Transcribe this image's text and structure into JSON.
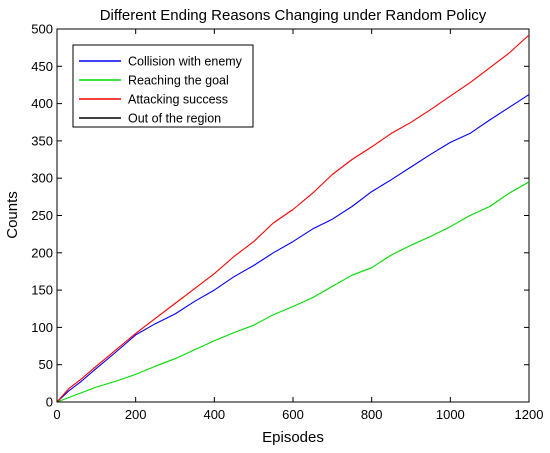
{
  "chart_data": {
    "type": "line",
    "title": "Different Ending Reasons Changing under Random Policy",
    "xlabel": "Episodes",
    "ylabel": "Counts",
    "xlim": [
      0,
      1200
    ],
    "ylim": [
      0,
      500
    ],
    "xticks": [
      0,
      200,
      400,
      600,
      800,
      1000,
      1200
    ],
    "yticks": [
      0,
      50,
      100,
      150,
      200,
      250,
      300,
      350,
      400,
      450,
      500
    ],
    "grid": false,
    "legend_position": "top-left",
    "series": [
      {
        "name": "Collision with enemy",
        "color": "#0000ff",
        "x": [
          0,
          30,
          60,
          100,
          150,
          200,
          250,
          300,
          350,
          400,
          450,
          500,
          550,
          600,
          650,
          700,
          750,
          800,
          850,
          900,
          950,
          1000,
          1050,
          1100,
          1150,
          1200
        ],
        "y": [
          0,
          15,
          27,
          45,
          67,
          90,
          105,
          118,
          135,
          150,
          168,
          183,
          200,
          215,
          232,
          245,
          262,
          282,
          298,
          315,
          332,
          348,
          360,
          378,
          395,
          412
        ]
      },
      {
        "name": "Reaching the goal",
        "color": "#00dd00",
        "x": [
          0,
          50,
          100,
          150,
          200,
          250,
          300,
          350,
          400,
          450,
          500,
          550,
          600,
          650,
          700,
          750,
          800,
          850,
          900,
          950,
          1000,
          1050,
          1100,
          1150,
          1200
        ],
        "y": [
          0,
          10,
          20,
          28,
          37,
          48,
          58,
          70,
          82,
          93,
          103,
          117,
          128,
          140,
          155,
          170,
          180,
          197,
          210,
          222,
          235,
          250,
          262,
          280,
          295
        ]
      },
      {
        "name": "Attacking success",
        "color": "#ff0000",
        "x": [
          0,
          30,
          60,
          100,
          150,
          200,
          250,
          300,
          350,
          400,
          450,
          500,
          550,
          600,
          650,
          700,
          750,
          800,
          850,
          900,
          950,
          1000,
          1050,
          1100,
          1150,
          1200
        ],
        "y": [
          0,
          18,
          30,
          48,
          70,
          92,
          112,
          132,
          152,
          172,
          195,
          215,
          240,
          258,
          280,
          305,
          325,
          342,
          360,
          375,
          392,
          410,
          428,
          448,
          468,
          492
        ]
      },
      {
        "name": "Out of the region",
        "color": "#000000",
        "x": [],
        "y": []
      }
    ]
  }
}
